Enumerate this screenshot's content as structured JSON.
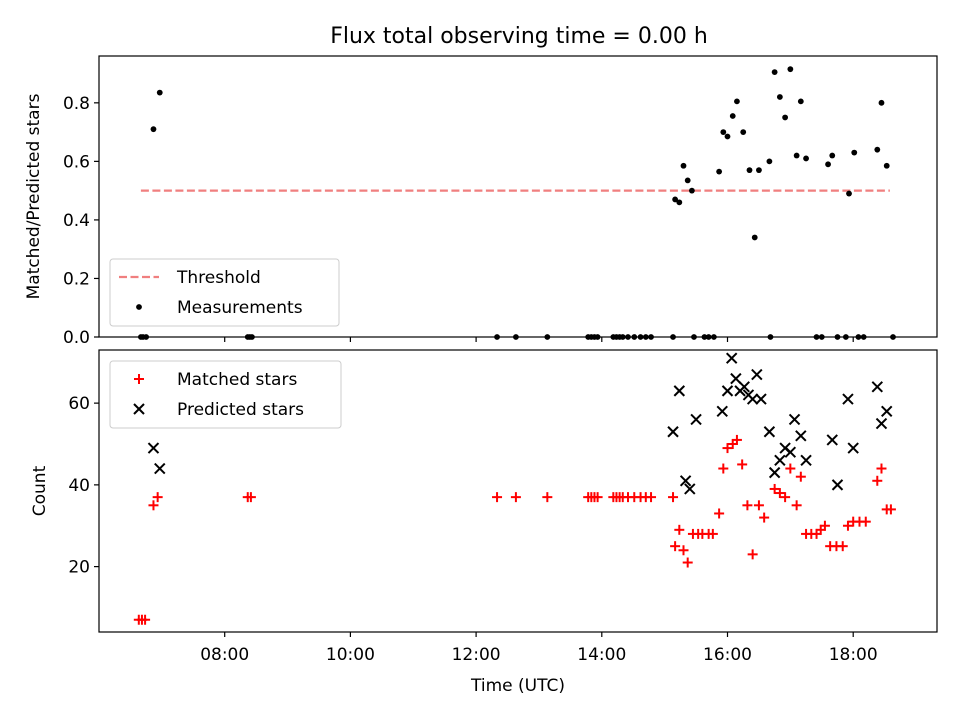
{
  "title": "Flux total observing time = 0.00 h",
  "chart_data": [
    {
      "type": "scatter",
      "ylabel": "Matched/Predicted stars",
      "xlabel": "",
      "xlim": [
        "06:00",
        "19:20"
      ],
      "ylim": [
        0,
        0.96
      ],
      "yticks": [
        0.0,
        0.2,
        0.4,
        0.6,
        0.8
      ],
      "ytick_labels": [
        "0.0",
        "0.2",
        "0.4",
        "0.6",
        "0.8"
      ],
      "legend": {
        "placement": "lower-left",
        "entries": [
          "Threshold",
          "Measurements"
        ]
      },
      "threshold": {
        "name": "Threshold",
        "y": 0.5,
        "x_start": "06:40",
        "x_end": "18:35",
        "color": "#f07f7f",
        "style": "dashed"
      },
      "series": [
        {
          "name": "Measurements",
          "marker": "dot",
          "color": "#000000",
          "points": [
            [
              "06:40",
              0.0
            ],
            [
              "06:42",
              0.0
            ],
            [
              "06:45",
              0.0
            ],
            [
              "06:52",
              0.71
            ],
            [
              "06:58",
              0.835
            ],
            [
              "08:22",
              0.0
            ],
            [
              "08:24",
              0.0
            ],
            [
              "08:26",
              0.0
            ],
            [
              "12:20",
              0.0
            ],
            [
              "12:38",
              0.0
            ],
            [
              "13:08",
              0.0
            ],
            [
              "13:47",
              0.0
            ],
            [
              "13:50",
              0.0
            ],
            [
              "13:53",
              0.0
            ],
            [
              "13:56",
              0.0
            ],
            [
              "14:11",
              0.0
            ],
            [
              "14:14",
              0.0
            ],
            [
              "14:17",
              0.0
            ],
            [
              "14:20",
              0.0
            ],
            [
              "14:25",
              0.0
            ],
            [
              "14:31",
              0.0
            ],
            [
              "14:37",
              0.0
            ],
            [
              "14:42",
              0.0
            ],
            [
              "14:47",
              0.0
            ],
            [
              "15:08",
              0.0
            ],
            [
              "15:28",
              0.0
            ],
            [
              "15:38",
              0.0
            ],
            [
              "15:42",
              0.0
            ],
            [
              "15:47",
              0.0
            ],
            [
              "16:41",
              0.0
            ],
            [
              "17:25",
              0.0
            ],
            [
              "17:30",
              0.0
            ],
            [
              "17:45",
              0.0
            ],
            [
              "17:53",
              0.0
            ],
            [
              "18:05",
              0.0
            ],
            [
              "18:10",
              0.0
            ],
            [
              "18:38",
              0.0
            ],
            [
              "15:10",
              0.47
            ],
            [
              "15:14",
              0.46
            ],
            [
              "15:18",
              0.585
            ],
            [
              "15:22",
              0.535
            ],
            [
              "15:26",
              0.5
            ],
            [
              "15:52",
              0.565
            ],
            [
              "15:56",
              0.7
            ],
            [
              "16:00",
              0.685
            ],
            [
              "16:05",
              0.755
            ],
            [
              "16:09",
              0.805
            ],
            [
              "16:15",
              0.7
            ],
            [
              "16:21",
              0.57
            ],
            [
              "16:26",
              0.34
            ],
            [
              "16:30",
              0.57
            ],
            [
              "16:40",
              0.6
            ],
            [
              "16:45",
              0.905
            ],
            [
              "16:50",
              0.82
            ],
            [
              "16:55",
              0.75
            ],
            [
              "17:00",
              0.915
            ],
            [
              "17:06",
              0.62
            ],
            [
              "17:10",
              0.805
            ],
            [
              "17:15",
              0.61
            ],
            [
              "17:36",
              0.59
            ],
            [
              "17:40",
              0.62
            ],
            [
              "17:56",
              0.49
            ],
            [
              "18:01",
              0.63
            ],
            [
              "18:23",
              0.64
            ],
            [
              "18:27",
              0.8
            ],
            [
              "18:32",
              0.585
            ]
          ]
        }
      ]
    },
    {
      "type": "scatter",
      "ylabel": "Count",
      "xlabel": "Time (UTC)",
      "xlim": [
        "06:00",
        "19:20"
      ],
      "ylim": [
        4,
        73
      ],
      "yticks": [
        20,
        40,
        60
      ],
      "ytick_labels": [
        "20",
        "40",
        "60"
      ],
      "xticks": [
        "08:00",
        "10:00",
        "12:00",
        "14:00",
        "16:00",
        "18:00"
      ],
      "legend": {
        "placement": "upper-left",
        "entries": [
          "Matched stars",
          "Predicted stars"
        ]
      },
      "series": [
        {
          "name": "Matched stars",
          "marker": "plus",
          "color": "#ff0000",
          "points": [
            [
              "06:38",
              7
            ],
            [
              "06:41",
              7
            ],
            [
              "06:44",
              7
            ],
            [
              "06:52",
              35
            ],
            [
              "06:56",
              37
            ],
            [
              "08:22",
              37
            ],
            [
              "08:25",
              37
            ],
            [
              "12:20",
              37
            ],
            [
              "12:38",
              37
            ],
            [
              "13:08",
              37
            ],
            [
              "13:47",
              37
            ],
            [
              "13:50",
              37
            ],
            [
              "13:53",
              37
            ],
            [
              "13:56",
              37
            ],
            [
              "14:11",
              37
            ],
            [
              "14:14",
              37
            ],
            [
              "14:17",
              37
            ],
            [
              "14:20",
              37
            ],
            [
              "14:25",
              37
            ],
            [
              "14:31",
              37
            ],
            [
              "14:37",
              37
            ],
            [
              "14:42",
              37
            ],
            [
              "14:47",
              37
            ],
            [
              "15:08",
              37
            ],
            [
              "15:10",
              25
            ],
            [
              "15:14",
              29
            ],
            [
              "15:18",
              24
            ],
            [
              "15:22",
              21
            ],
            [
              "15:27",
              28
            ],
            [
              "15:32",
              28
            ],
            [
              "15:36",
              28
            ],
            [
              "15:42",
              28
            ],
            [
              "15:46",
              28
            ],
            [
              "15:52",
              33
            ],
            [
              "15:56",
              44
            ],
            [
              "16:00",
              49
            ],
            [
              "16:05",
              50
            ],
            [
              "16:09",
              51
            ],
            [
              "16:14",
              45
            ],
            [
              "16:19",
              35
            ],
            [
              "16:24",
              23
            ],
            [
              "16:30",
              35
            ],
            [
              "16:35",
              32
            ],
            [
              "16:45",
              39
            ],
            [
              "16:50",
              38
            ],
            [
              "16:55",
              37
            ],
            [
              "17:00",
              44
            ],
            [
              "17:06",
              35
            ],
            [
              "17:10",
              42
            ],
            [
              "17:15",
              28
            ],
            [
              "17:20",
              28
            ],
            [
              "17:25",
              28
            ],
            [
              "17:29",
              29
            ],
            [
              "17:33",
              30
            ],
            [
              "17:38",
              25
            ],
            [
              "17:44",
              25
            ],
            [
              "17:50",
              25
            ],
            [
              "17:55",
              30
            ],
            [
              "18:00",
              31
            ],
            [
              "18:06",
              31
            ],
            [
              "18:12",
              31
            ],
            [
              "18:23",
              41
            ],
            [
              "18:27",
              44
            ],
            [
              "18:32",
              34
            ],
            [
              "18:36",
              34
            ]
          ]
        },
        {
          "name": "Predicted stars",
          "marker": "x",
          "color": "#000000",
          "points": [
            [
              "06:52",
              49
            ],
            [
              "06:58",
              44
            ],
            [
              "15:08",
              53
            ],
            [
              "15:14",
              63
            ],
            [
              "15:20",
              41
            ],
            [
              "15:24",
              39
            ],
            [
              "15:30",
              56
            ],
            [
              "15:55",
              58
            ],
            [
              "16:00",
              63
            ],
            [
              "16:04",
              71
            ],
            [
              "16:08",
              66
            ],
            [
              "16:12",
              63
            ],
            [
              "16:16",
              64
            ],
            [
              "16:20",
              62
            ],
            [
              "16:24",
              61
            ],
            [
              "16:28",
              67
            ],
            [
              "16:32",
              61
            ],
            [
              "16:40",
              53
            ],
            [
              "16:45",
              43
            ],
            [
              "16:50",
              46
            ],
            [
              "16:55",
              49
            ],
            [
              "17:00",
              48
            ],
            [
              "17:04",
              56
            ],
            [
              "17:10",
              52
            ],
            [
              "17:15",
              46
            ],
            [
              "17:40",
              51
            ],
            [
              "17:45",
              40
            ],
            [
              "17:55",
              61
            ],
            [
              "18:00",
              49
            ],
            [
              "18:23",
              64
            ],
            [
              "18:27",
              55
            ],
            [
              "18:32",
              58
            ]
          ]
        }
      ]
    }
  ]
}
